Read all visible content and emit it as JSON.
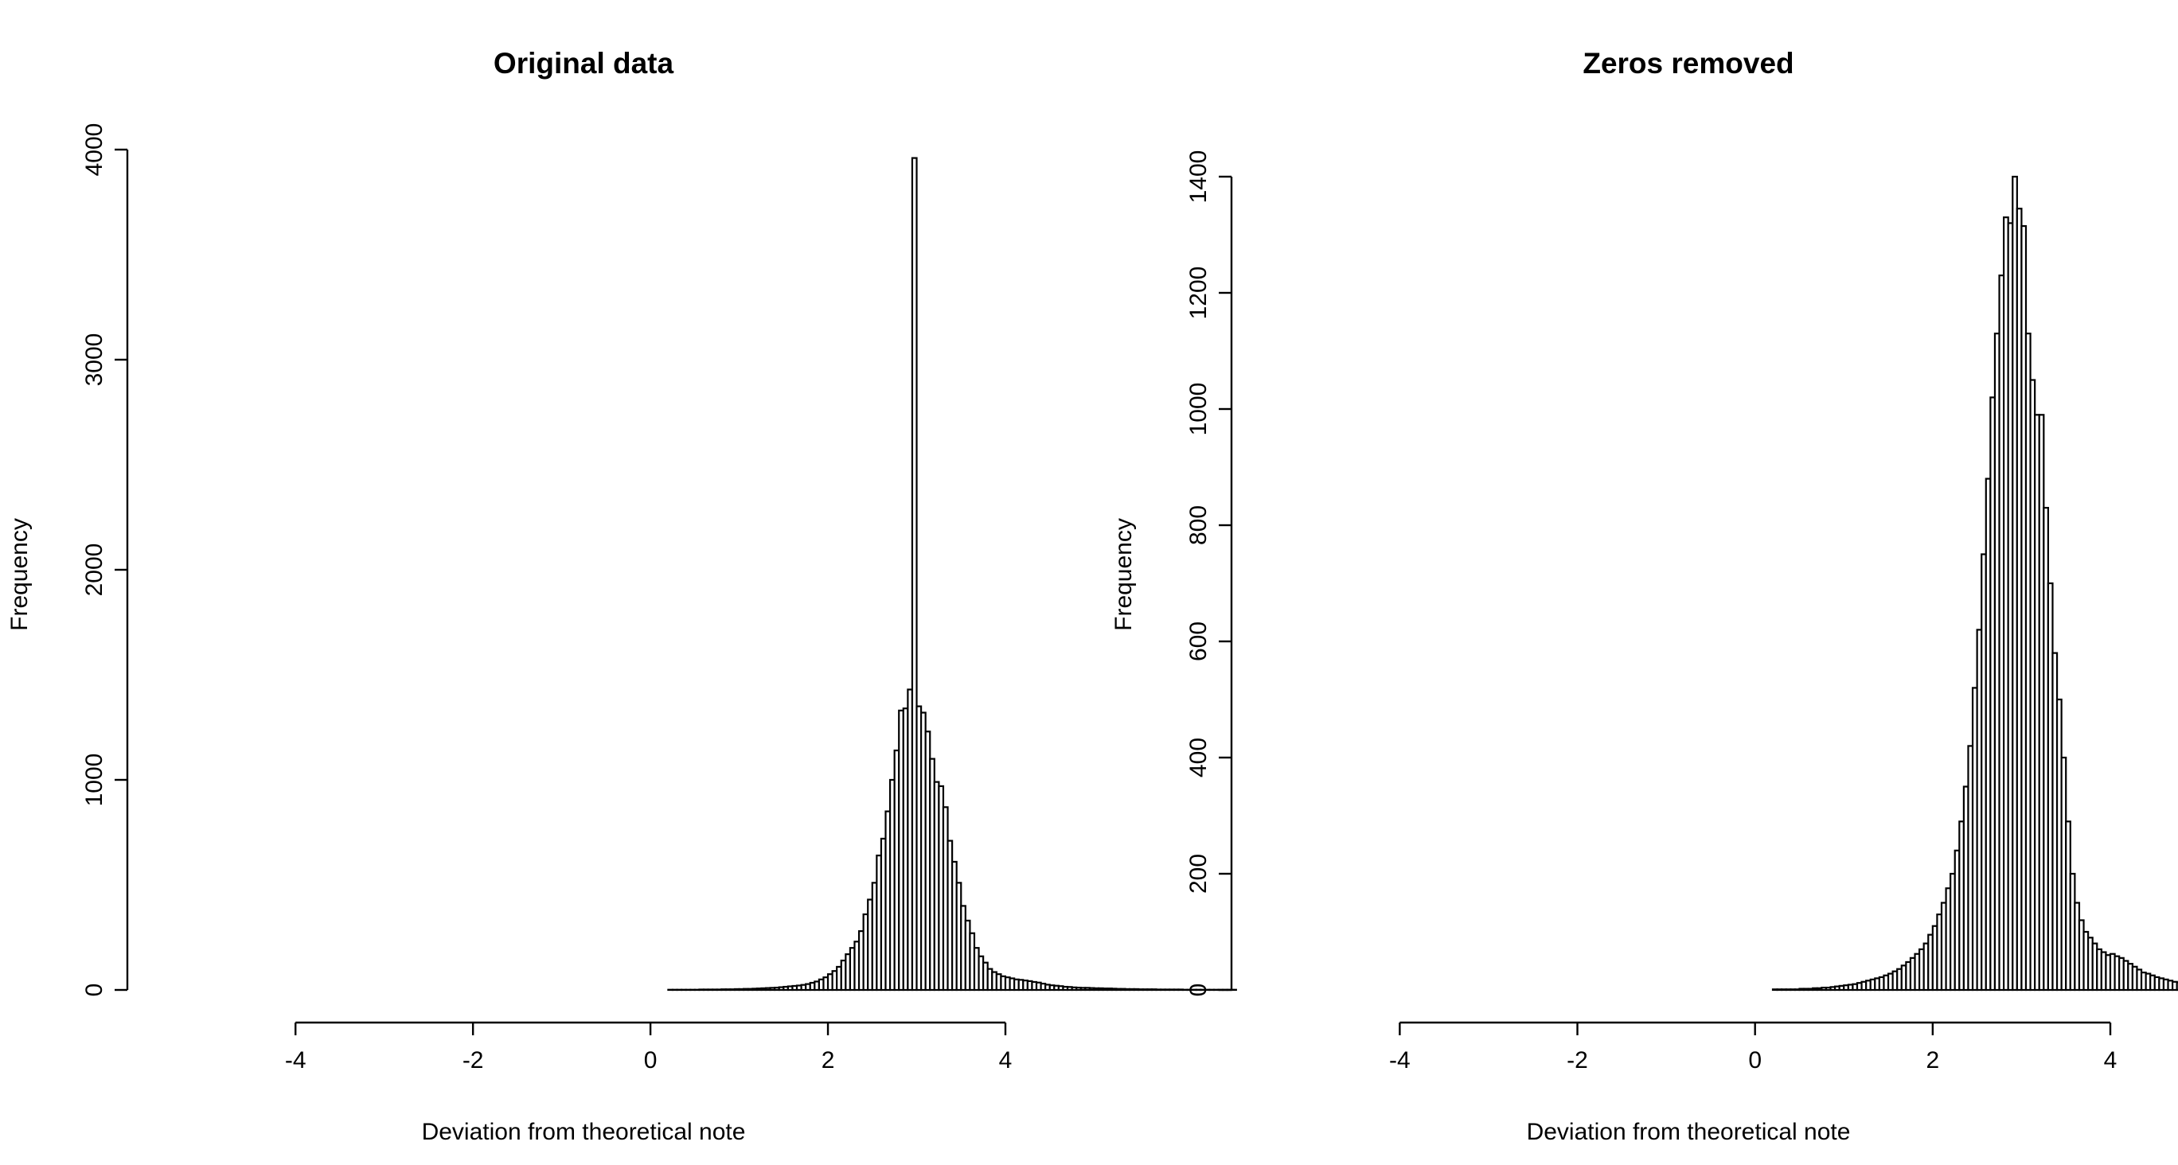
{
  "chart_data": [
    {
      "type": "bar",
      "title": "Original data",
      "xlabel": "Deviation from theoretical note",
      "ylabel": "Frequency",
      "xlim": [
        -5.5,
        4.0
      ],
      "ylim": [
        0,
        4000
      ],
      "x_ticks": [
        -4,
        -2,
        0,
        2,
        4
      ],
      "y_ticks": [
        0,
        1000,
        2000,
        3000,
        4000
      ],
      "bin_start": -5.5,
      "bin_width": 0.05,
      "values": [
        0,
        0,
        0,
        0,
        0,
        0,
        0,
        0,
        0,
        0,
        0,
        0,
        0,
        0,
        0,
        0,
        0,
        0,
        0,
        0,
        0,
        0,
        0,
        0,
        0,
        0,
        0,
        0,
        0,
        0,
        0,
        0,
        0,
        0,
        0,
        0,
        0,
        0,
        0,
        0,
        0,
        0,
        0,
        0,
        0,
        0,
        0,
        0,
        0,
        0,
        0,
        0,
        0,
        0,
        0,
        0,
        0,
        0,
        0,
        0,
        0,
        0,
        0,
        0,
        0,
        0,
        0,
        0,
        0,
        0,
        0,
        0,
        0,
        0,
        0,
        0,
        0,
        0,
        0,
        0,
        0,
        0,
        0,
        0,
        0,
        0,
        0,
        0,
        0,
        0,
        0,
        0,
        0,
        0,
        0,
        0,
        0,
        0,
        0,
        0,
        0,
        0,
        0,
        0,
        0,
        0,
        0,
        0,
        0,
        0,
        0,
        0,
        0,
        0,
        1,
        1,
        1,
        1,
        1,
        1,
        1,
        2,
        2,
        2,
        2,
        2,
        3,
        3,
        3,
        4,
        4,
        5,
        5,
        6,
        7,
        8,
        9,
        10,
        11,
        13,
        15,
        17,
        19,
        21,
        24,
        28,
        34,
        40,
        50,
        60,
        75,
        90,
        110,
        140,
        170,
        200,
        230,
        280,
        360,
        430,
        510,
        640,
        720,
        850,
        1000,
        1140,
        1330,
        1340,
        1430,
        3960,
        1350,
        1320,
        1230,
        1100,
        990,
        970,
        870,
        710,
        610,
        510,
        400,
        330,
        270,
        200,
        160,
        130,
        100,
        85,
        75,
        65,
        60,
        55,
        50,
        48,
        45,
        42,
        38,
        35,
        30,
        25,
        22,
        20,
        18,
        15,
        14,
        12,
        11,
        10,
        10,
        9,
        8,
        8,
        7,
        7,
        6,
        5,
        5,
        4,
        4,
        4,
        3,
        3,
        3,
        3,
        2,
        2,
        2,
        2,
        2,
        2,
        1,
        1,
        1,
        1,
        1,
        1,
        1,
        1,
        1,
        1,
        1,
        1,
        0,
        0,
        0,
        0,
        0,
        0,
        0
      ]
    },
    {
      "type": "bar",
      "title": "Zeros removed",
      "xlabel": "Deviation from theoretical note",
      "ylabel": "Frequency",
      "xlim": [
        -5.5,
        4.0
      ],
      "ylim": [
        0,
        1400
      ],
      "x_ticks": [
        -4,
        -2,
        0,
        2,
        4
      ],
      "y_ticks": [
        0,
        200,
        400,
        600,
        800,
        1000,
        1200,
        1400
      ],
      "bin_start": -5.5,
      "bin_width": 0.05,
      "values": [
        0,
        0,
        0,
        0,
        0,
        0,
        0,
        0,
        0,
        0,
        0,
        0,
        0,
        0,
        0,
        0,
        0,
        0,
        0,
        0,
        0,
        0,
        0,
        0,
        0,
        0,
        0,
        0,
        0,
        0,
        0,
        0,
        0,
        0,
        0,
        0,
        0,
        0,
        0,
        0,
        0,
        0,
        0,
        0,
        0,
        0,
        0,
        0,
        0,
        0,
        0,
        0,
        0,
        0,
        0,
        0,
        0,
        0,
        0,
        0,
        0,
        0,
        0,
        0,
        0,
        0,
        0,
        0,
        0,
        0,
        0,
        0,
        0,
        0,
        0,
        0,
        0,
        0,
        0,
        0,
        0,
        0,
        0,
        0,
        0,
        0,
        0,
        0,
        0,
        0,
        0,
        0,
        0,
        0,
        0,
        0,
        0,
        0,
        0,
        0,
        0,
        0,
        0,
        0,
        0,
        0,
        0,
        0,
        0,
        0,
        0,
        0,
        0,
        0,
        1,
        1,
        1,
        1,
        1,
        1,
        2,
        2,
        2,
        3,
        3,
        4,
        4,
        5,
        6,
        7,
        8,
        9,
        10,
        12,
        14,
        16,
        18,
        20,
        22,
        25,
        28,
        32,
        36,
        42,
        48,
        55,
        62,
        70,
        80,
        95,
        110,
        130,
        150,
        175,
        200,
        240,
        290,
        350,
        420,
        520,
        620,
        750,
        880,
        1020,
        1130,
        1230,
        1330,
        1320,
        1430,
        1345,
        1315,
        1130,
        1050,
        990,
        990,
        830,
        700,
        580,
        500,
        400,
        290,
        200,
        150,
        120,
        100,
        90,
        80,
        70,
        65,
        60,
        62,
        58,
        55,
        50,
        45,
        40,
        35,
        30,
        28,
        25,
        22,
        20,
        18,
        16,
        14,
        13,
        12,
        11,
        10,
        9,
        8,
        7,
        7,
        6,
        6,
        5,
        5,
        5,
        4,
        4,
        4,
        3,
        3,
        3,
        3,
        2,
        2,
        2,
        2,
        2,
        2,
        1,
        1,
        1,
        1,
        1,
        1,
        1,
        1,
        1,
        1,
        1,
        1,
        0,
        0,
        0,
        0,
        0,
        0,
        0
      ]
    }
  ]
}
